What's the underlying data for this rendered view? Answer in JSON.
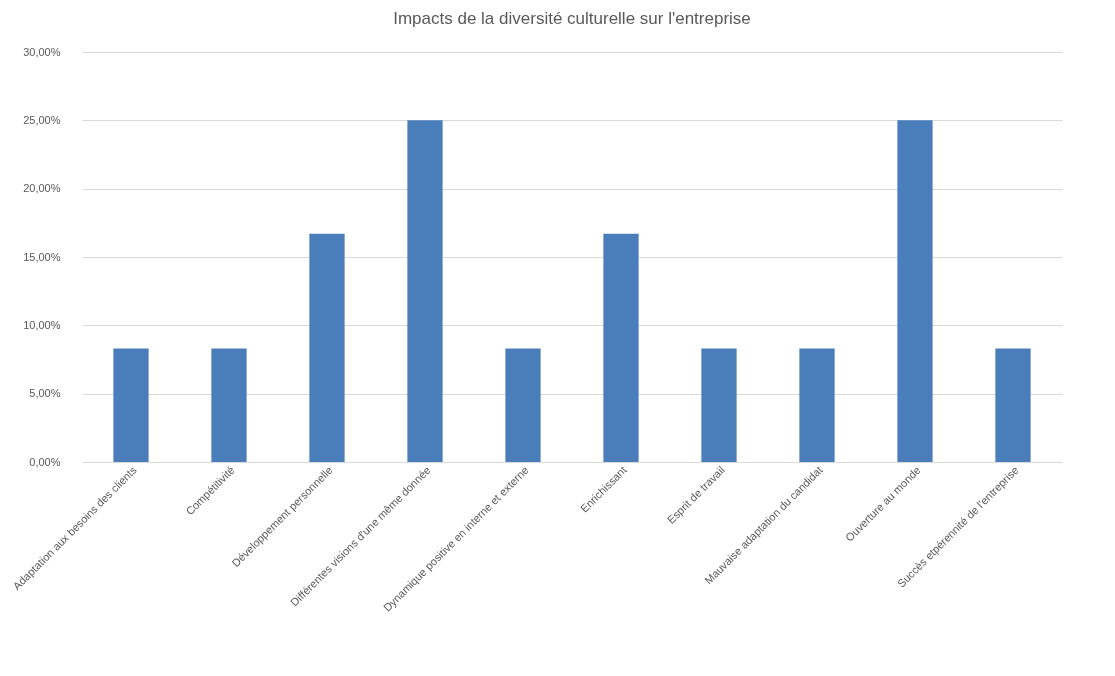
{
  "chart_data": {
    "type": "bar",
    "title": "Impacts de la diversité culturelle sur l'entreprise",
    "categories": [
      "Adaptation aux besoins des clients",
      "Compétitivité",
      "Développement personnelle",
      "Différentes visions d'une même donnée",
      "Dynamique positive en interne et externe",
      "Enrichissant",
      "Esprit de travail",
      "Mauvaise adaptation du candidat",
      "Ouverture au monde",
      "Succès etpérennité de l'entreprise"
    ],
    "values": [
      8.3,
      8.3,
      16.7,
      25,
      8.3,
      16.7,
      8.3,
      8.3,
      25,
      8.3
    ],
    "color": "#4a7ebb",
    "ylim": [
      0,
      30
    ],
    "yticks": [
      {
        "value": 0,
        "label": "0,00%"
      },
      {
        "value": 5,
        "label": "5,00%"
      },
      {
        "value": 10,
        "label": "10,00%"
      },
      {
        "value": 15,
        "label": "15,00%"
      },
      {
        "value": 20,
        "label": "20,00%"
      },
      {
        "value": 25,
        "label": "25,00%"
      },
      {
        "value": 30,
        "label": "30,00%"
      }
    ],
    "grid": "y",
    "legend": false
  }
}
